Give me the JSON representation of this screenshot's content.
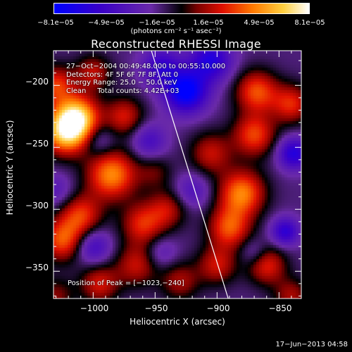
{
  "colorbar": {
    "ticks": [
      "−8.1e−05",
      "−4.9e−05",
      "−1.6e−05",
      "1.6e−05",
      "4.9e−05",
      "8.1e−05"
    ],
    "units": "(photons cm⁻² s⁻¹ asec⁻²)",
    "range": [
      -8.1e-05,
      8.1e-05
    ],
    "colors": [
      "#0000ff",
      "#3a00c8",
      "#6a2aa8",
      "#000000",
      "#7a0000",
      "#e01000",
      "#ff7a00",
      "#ffd040",
      "#ffffff"
    ]
  },
  "title": "Reconstructed RHESSI Image",
  "info": {
    "time": "27−Oct−2004 00:49:48.000 to 00:55:10.000",
    "detectors": "Detectors: 4F 5F 6F 7F 8F, Att 0",
    "energy": "Energy Range: 25.0 − 50.0 keV",
    "clean": "Clean     Total counts: 4.42E+03",
    "peak": "Position of Peak = [−1023,−240]"
  },
  "chart_data": {
    "type": "heatmap",
    "title": "Reconstructed RHESSI Image",
    "xlabel": "Heliocentric X (arcsec)",
    "ylabel": "Heliocentric Y (arcsec)",
    "xlim": [
      -1032,
      -832
    ],
    "ylim": [
      -372,
      -172
    ],
    "xticks": [
      -1000,
      -950,
      -900,
      -850
    ],
    "yticks": [
      -200,
      -250,
      -300,
      -350
    ],
    "xtick_labels": [
      "−1000",
      "−950",
      "−900",
      "−850"
    ],
    "ytick_labels": [
      "−200",
      "−250",
      "−300",
      "−350"
    ],
    "peak_position": [
      -1023,
      -240
    ],
    "limb_line": [
      [
        -953,
        -172
      ],
      [
        -891,
        -372
      ]
    ],
    "blobs": [
      {
        "x": -1022,
        "y": -237,
        "amp": 8.1e-05,
        "sigma": 13
      },
      {
        "x": -1012,
        "y": -225,
        "amp": 6.5e-05,
        "sigma": 12
      },
      {
        "x": -985,
        "y": -272,
        "amp": 6.2e-05,
        "sigma": 14
      },
      {
        "x": -1030,
        "y": -200,
        "amp": 4.5e-05,
        "sigma": 11
      },
      {
        "x": -1000,
        "y": -190,
        "amp": 3.5e-05,
        "sigma": 10
      },
      {
        "x": -975,
        "y": -225,
        "amp": 3.8e-05,
        "sigma": 11
      },
      {
        "x": -1010,
        "y": -305,
        "amp": 4.5e-05,
        "sigma": 12
      },
      {
        "x": -1025,
        "y": -325,
        "amp": 5e-05,
        "sigma": 12
      },
      {
        "x": -960,
        "y": -312,
        "amp": 4.2e-05,
        "sigma": 12
      },
      {
        "x": -940,
        "y": -300,
        "amp": 3.2e-05,
        "sigma": 11
      },
      {
        "x": -965,
        "y": -345,
        "amp": 3.5e-05,
        "sigma": 12
      },
      {
        "x": -995,
        "y": -360,
        "amp": 3.8e-05,
        "sigma": 11
      },
      {
        "x": -1030,
        "y": -370,
        "amp": 2.5e-05,
        "sigma": 10
      },
      {
        "x": -905,
        "y": -255,
        "amp": 3.5e-05,
        "sigma": 12
      },
      {
        "x": -880,
        "y": -287,
        "amp": 6e-05,
        "sigma": 13
      },
      {
        "x": -870,
        "y": -240,
        "amp": 4.8e-05,
        "sigma": 12
      },
      {
        "x": -868,
        "y": -205,
        "amp": 5e-05,
        "sigma": 12
      },
      {
        "x": -840,
        "y": -215,
        "amp": 4.2e-05,
        "sigma": 11
      },
      {
        "x": -890,
        "y": -315,
        "amp": 5e-05,
        "sigma": 12
      },
      {
        "x": -860,
        "y": -345,
        "amp": 4.2e-05,
        "sigma": 11
      },
      {
        "x": -900,
        "y": -345,
        "amp": 3.6e-05,
        "sigma": 11
      },
      {
        "x": -930,
        "y": -358,
        "amp": 3e-05,
        "sigma": 11
      },
      {
        "x": -840,
        "y": -370,
        "amp": 3e-05,
        "sigma": 10
      },
      {
        "x": -950,
        "y": -270,
        "amp": 2e-05,
        "sigma": 10
      },
      {
        "x": -925,
        "y": -205,
        "amp": -7e-05,
        "sigma": 12
      },
      {
        "x": -905,
        "y": -180,
        "amp": -5e-05,
        "sigma": 12
      },
      {
        "x": -945,
        "y": -185,
        "amp": -4e-05,
        "sigma": 11
      },
      {
        "x": -838,
        "y": -255,
        "amp": -5e-05,
        "sigma": 9
      },
      {
        "x": -845,
        "y": -318,
        "amp": -4.5e-05,
        "sigma": 8
      },
      {
        "x": -1000,
        "y": -330,
        "amp": -3.5e-05,
        "sigma": 10
      },
      {
        "x": -955,
        "y": -245,
        "amp": -3e-05,
        "sigma": 10
      },
      {
        "x": -995,
        "y": -245,
        "amp": -2e-05,
        "sigma": 9
      },
      {
        "x": -920,
        "y": -285,
        "amp": -2.5e-05,
        "sigma": 10
      },
      {
        "x": -1030,
        "y": -285,
        "amp": -2e-05,
        "sigma": 10
      },
      {
        "x": -945,
        "y": -335,
        "amp": -2e-05,
        "sigma": 9
      },
      {
        "x": -870,
        "y": -335,
        "amp": -2e-05,
        "sigma": 8
      }
    ]
  },
  "timestamp": "17−Jun−2013 04:58"
}
